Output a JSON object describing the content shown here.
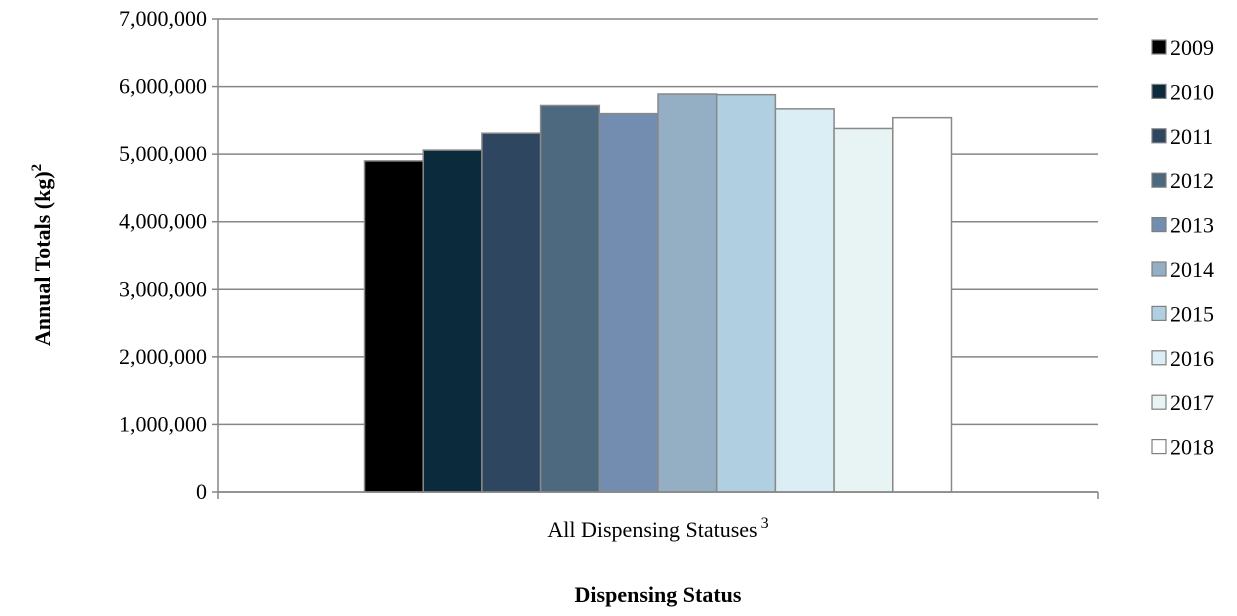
{
  "chart_data": {
    "type": "bar",
    "title": "",
    "xlabel": "Dispensing Status",
    "ylabel": "Annual Totals (kg)",
    "ylabel_sup": "2",
    "ylim": [
      0,
      7000000
    ],
    "ytick_values": [
      0,
      1000000,
      2000000,
      3000000,
      4000000,
      5000000,
      6000000,
      7000000
    ],
    "ytick_labels": [
      "0",
      "1,000,000",
      "2,000,000",
      "3,000,000",
      "4,000,000",
      "5,000,000",
      "6,000,000",
      "7,000,000"
    ],
    "categories": [
      "All Dispensing Statuses"
    ],
    "category_sup": "3",
    "grid": true,
    "legend_position": "right",
    "series": [
      {
        "name": "2009",
        "values": [
          4900000
        ],
        "color": "#000000"
      },
      {
        "name": "2010",
        "values": [
          5060000
        ],
        "color": "#0b2a3b"
      },
      {
        "name": "2011",
        "values": [
          5310000
        ],
        "color": "#2e465f"
      },
      {
        "name": "2012",
        "values": [
          5720000
        ],
        "color": "#4d697f"
      },
      {
        "name": "2013",
        "values": [
          5600000
        ],
        "color": "#728db0"
      },
      {
        "name": "2014",
        "values": [
          5890000
        ],
        "color": "#94afc4"
      },
      {
        "name": "2015",
        "values": [
          5880000
        ],
        "color": "#b0d0e2"
      },
      {
        "name": "2016",
        "values": [
          5670000
        ],
        "color": "#dbeef5"
      },
      {
        "name": "2017",
        "values": [
          5380000
        ],
        "color": "#e8f4f4"
      },
      {
        "name": "2018",
        "values": [
          5540000
        ],
        "color": "#ffffff"
      }
    ]
  }
}
